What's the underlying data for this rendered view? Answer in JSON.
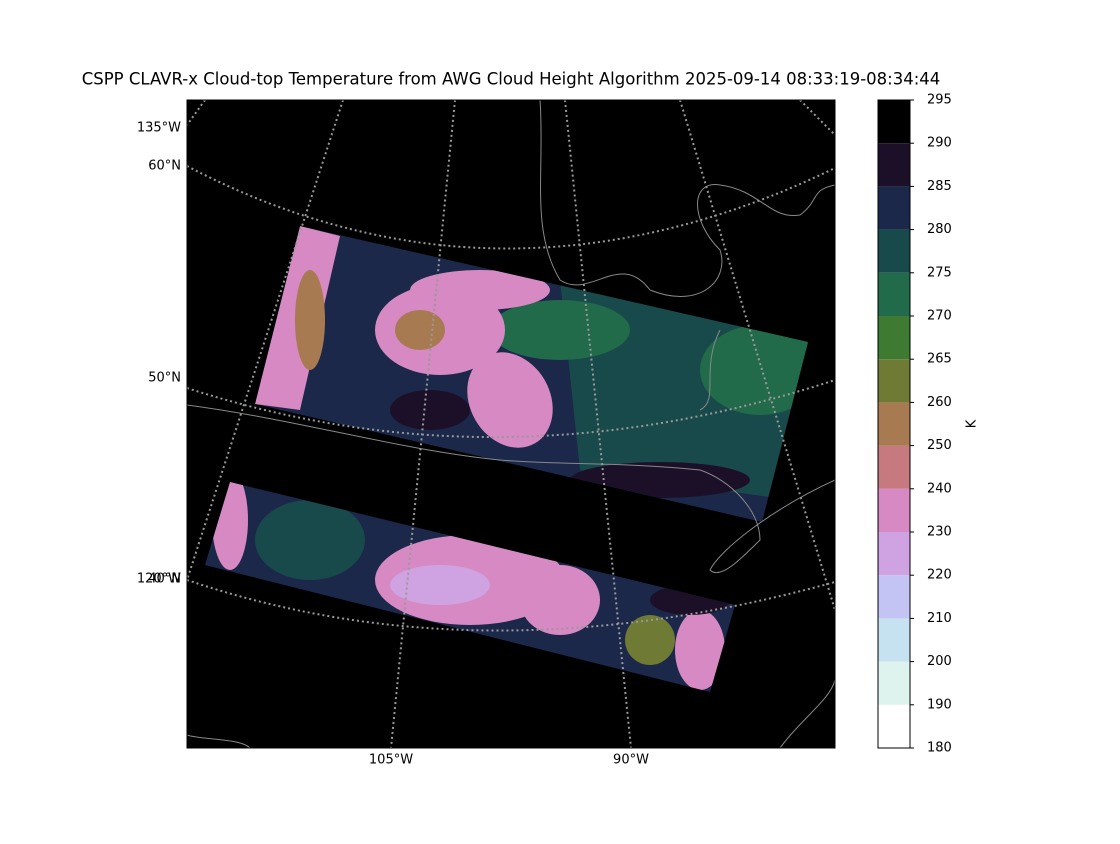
{
  "title": "CSPP CLAVR-x Cloud-top Temperature from AWG Cloud Height Algorithm 2025-09-14 08:33:19-08:34:44",
  "map": {
    "left_labels": [
      "135°W",
      "60°N",
      "50°N",
      "120°W",
      "40°N"
    ],
    "bottom_labels": [
      "105°W",
      "90°W"
    ]
  },
  "colorbar": {
    "label": "K",
    "ticks": [
      180,
      190,
      200,
      210,
      220,
      230,
      240,
      250,
      260,
      265,
      270,
      275,
      280,
      285,
      290,
      295
    ],
    "colors": [
      "#ffffff",
      "#dff3ee",
      "#c6e1f0",
      "#c4c4f4",
      "#cfa2e2",
      "#d689c2",
      "#c67a80",
      "#a87a52",
      "#6f7a34",
      "#3f7a32",
      "#216a4a",
      "#184a4c",
      "#1b284a",
      "#1c1029",
      "#000000"
    ]
  }
}
